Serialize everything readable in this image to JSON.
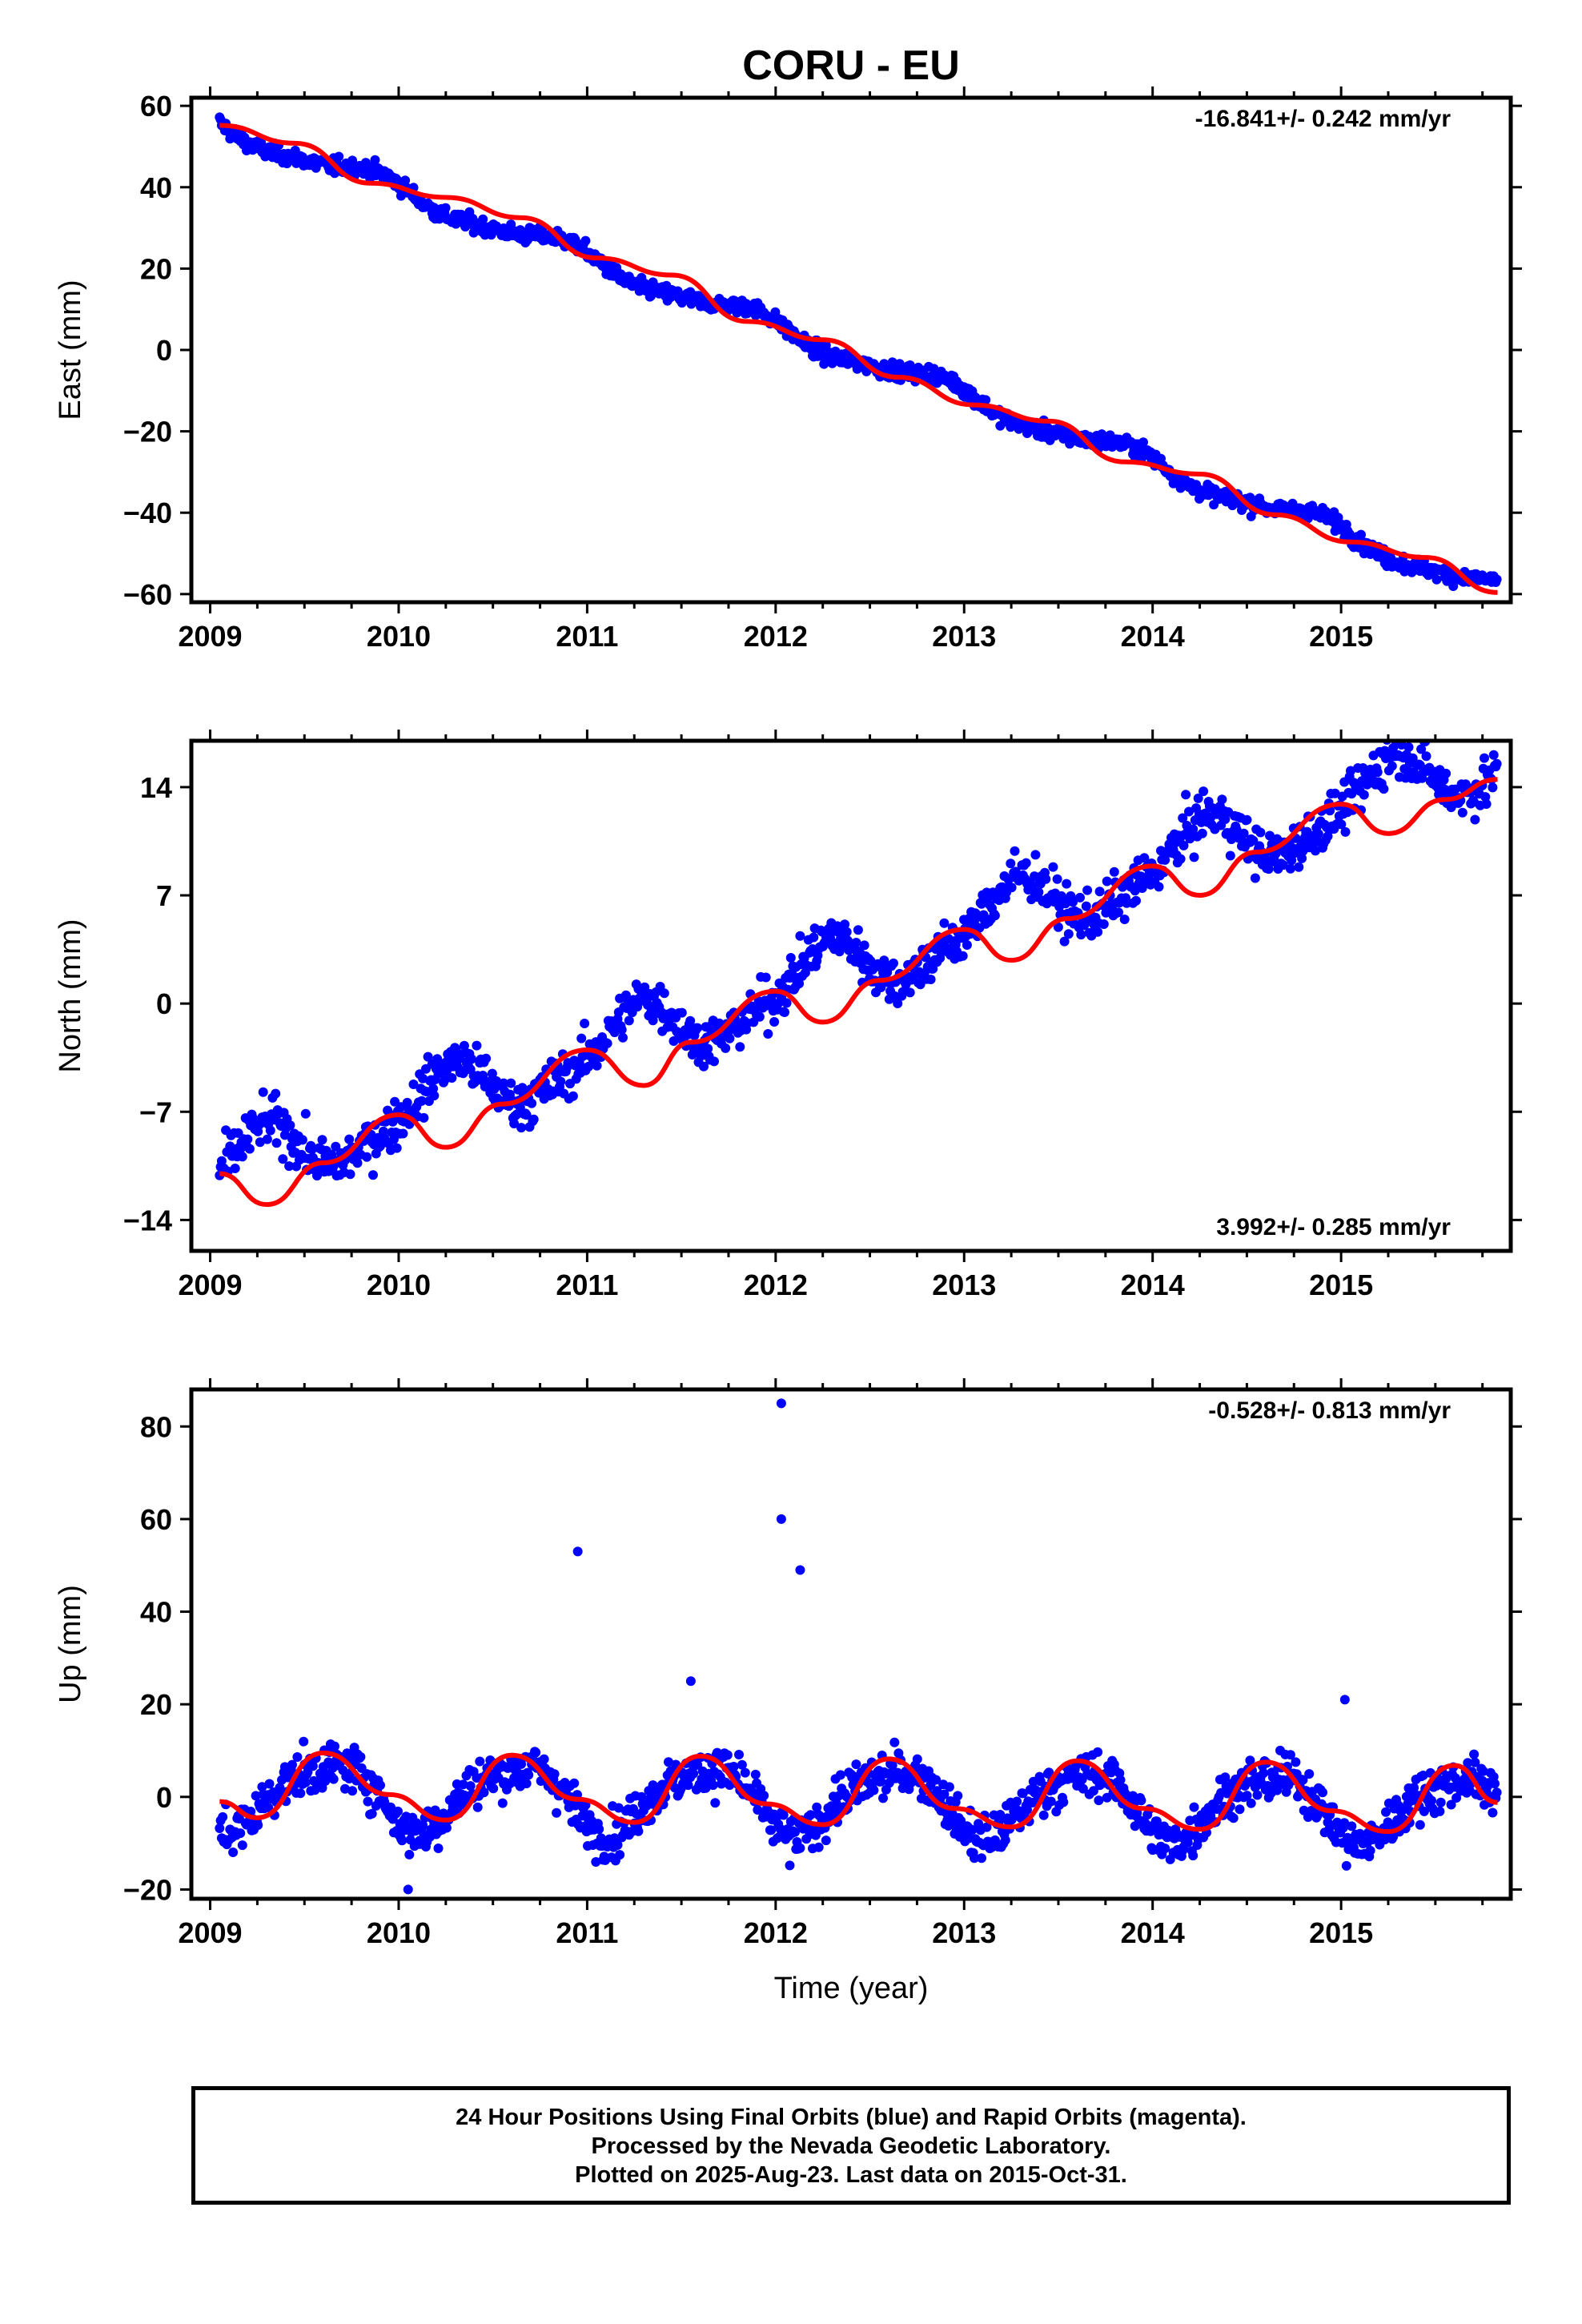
{
  "title": "CORU - EU",
  "colors": {
    "data": "#0000ff",
    "fit": "#ff0000",
    "frame": "#000000"
  },
  "chart_data": [
    {
      "type": "scatter",
      "ylabel": "East (mm)",
      "xlim": [
        2008.9,
        2015.9
      ],
      "ylim": [
        -62,
        62
      ],
      "yticks": [
        60,
        40,
        20,
        0,
        -20,
        -40,
        -60
      ],
      "yticklabels": [
        "60",
        "40",
        "20",
        "0",
        "−20",
        "−40",
        "−60"
      ],
      "xticks": [
        2009,
        2010,
        2011,
        2012,
        2013,
        2014,
        2015
      ],
      "xticklabels": [
        "2009",
        "2010",
        "2011",
        "2012",
        "2013",
        "2014",
        "2015"
      ],
      "rate_label": "-16.841+/- 0.242 mm/yr",
      "rate_position": "top-right",
      "model": {
        "t0": 2009.05,
        "offset": 55.2,
        "rate": -16.841,
        "amp_annual": 2.2,
        "phase_annual": 2009.6,
        "amp_semi": 0.6,
        "phase_semi": 2009.3
      },
      "scatter_noise": 1.4,
      "outliers": [],
      "series": [
        {
          "name": "24 Hour Positions",
          "points_from": "model+noise",
          "t_start": 2009.05,
          "t_end": 2015.83,
          "sample_step_years": 0.0055
        },
        {
          "name": "fit",
          "x": [
            2009.05,
            2009.45,
            2009.85,
            2010.25,
            2010.65,
            2011.05,
            2011.45,
            2011.85,
            2012.25,
            2012.65,
            2013.05,
            2013.45,
            2013.85,
            2014.25,
            2014.65,
            2015.05,
            2015.45,
            2015.83
          ],
          "y": [
            55.2,
            50.8,
            41.0,
            37.5,
            32.5,
            22.6,
            18.4,
            7.0,
            2.5,
            -6.7,
            -13.5,
            -17.5,
            -27.5,
            -30.5,
            -40.5,
            -47.2,
            -51.0,
            -59.6
          ]
        }
      ]
    },
    {
      "type": "scatter",
      "ylabel": "North (mm)",
      "xlim": [
        2008.9,
        2015.9
      ],
      "ylim": [
        -16,
        17
      ],
      "yticks": [
        14,
        7,
        0,
        -7,
        -14
      ],
      "yticklabels": [
        "14",
        "7",
        "0",
        "−7",
        "−14"
      ],
      "xticks": [
        2009,
        2010,
        2011,
        2012,
        2013,
        2014,
        2015
      ],
      "xticklabels": [
        "2009",
        "2010",
        "2011",
        "2012",
        "2013",
        "2014",
        "2015"
      ],
      "rate_label": "3.992+/- 0.285 mm/yr",
      "rate_position": "bottom-right",
      "model": {
        "t0": 2009.05,
        "offset": -11.0,
        "rate": 3.992,
        "amp_annual": 1.9,
        "phase_annual": 2009.0,
        "amp_semi": 0.5,
        "phase_semi": 2009.2
      },
      "scatter_noise": 1.1,
      "outliers": [],
      "series": [
        {
          "name": "24 Hour Positions",
          "points_from": "model+noise",
          "t_start": 2009.05,
          "t_end": 2015.83,
          "sample_step_years": 0.0055
        },
        {
          "name": "fit",
          "x": [
            2009.05,
            2009.3,
            2009.6,
            2010.0,
            2010.25,
            2010.55,
            2011.0,
            2011.3,
            2011.55,
            2012.0,
            2012.25,
            2012.55,
            2013.0,
            2013.25,
            2013.55,
            2014.0,
            2014.25,
            2014.55,
            2015.0,
            2015.25,
            2015.55,
            2015.83
          ],
          "y": [
            -11.0,
            -13.0,
            -10.3,
            -7.2,
            -9.3,
            -6.5,
            -3.0,
            -5.3,
            -2.5,
            0.8,
            -1.2,
            1.5,
            4.8,
            2.8,
            5.5,
            8.9,
            7.0,
            9.8,
            12.9,
            11.0,
            13.2,
            14.5
          ]
        }
      ]
    },
    {
      "type": "scatter",
      "ylabel": "Up (mm)",
      "xlabel": "Time (year)",
      "xlim": [
        2008.9,
        2015.9
      ],
      "ylim": [
        -22,
        88
      ],
      "yticks": [
        80,
        60,
        40,
        20,
        0,
        -20
      ],
      "yticklabels": [
        "80",
        "60",
        "40",
        "20",
        "0",
        "−20"
      ],
      "xticks": [
        2009,
        2010,
        2011,
        2012,
        2013,
        2014,
        2015
      ],
      "xticklabels": [
        "2009",
        "2010",
        "2011",
        "2012",
        "2013",
        "2014",
        "2015"
      ],
      "rate_label": "-0.528+/- 0.813 mm/yr",
      "rate_position": "top-right",
      "model": {
        "t0": 2009.05,
        "offset": 1.0,
        "rate": -0.528,
        "amp_annual": 7.0,
        "phase_annual": 2009.37,
        "amp_semi": 1.5,
        "phase_semi": 2009.2
      },
      "scatter_noise": 3.5,
      "outliers": [
        [
          2010.95,
          53
        ],
        [
          2012.03,
          85
        ],
        [
          2012.03,
          60
        ],
        [
          2012.13,
          49
        ],
        [
          2011.55,
          25
        ],
        [
          2015.02,
          21
        ],
        [
          2010.05,
          -20
        ]
      ],
      "series": [
        {
          "name": "24 Hour Positions",
          "points_from": "model+noise",
          "t_start": 2009.05,
          "t_end": 2015.83,
          "sample_step_years": 0.0055
        },
        {
          "name": "fit",
          "x": [
            2009.05,
            2009.25,
            2009.6,
            2009.95,
            2010.25,
            2010.6,
            2010.95,
            2011.25,
            2011.6,
            2011.95,
            2012.25,
            2012.6,
            2012.95,
            2013.25,
            2013.6,
            2013.95,
            2014.25,
            2014.6,
            2014.95,
            2015.25,
            2015.6,
            2015.83
          ],
          "y": [
            -1.0,
            -4.5,
            9.5,
            0.5,
            -5.0,
            9.0,
            -0.5,
            -5.5,
            8.8,
            -1.5,
            -6.0,
            8.2,
            -2.5,
            -6.5,
            7.8,
            -2.5,
            -7.0,
            7.5,
            -3.0,
            -7.5,
            6.8,
            -1.2
          ]
        }
      ]
    }
  ],
  "footer": {
    "line1": "24 Hour Positions Using Final Orbits (blue) and Rapid Orbits (magenta).",
    "line2": "Processed by the Nevada Geodetic Laboratory.",
    "line3": "Plotted on 2025-Aug-23. Last data on 2015-Oct-31."
  }
}
